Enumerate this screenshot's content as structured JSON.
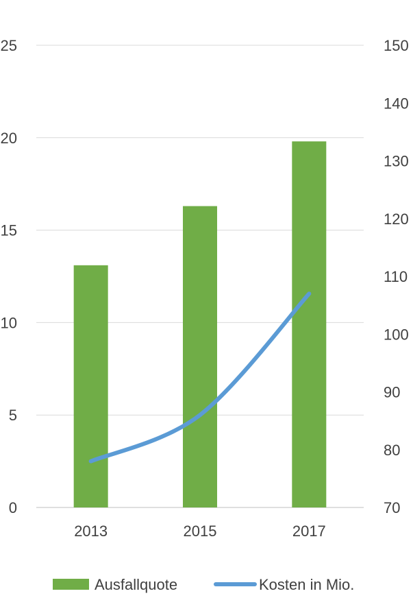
{
  "chart_data": {
    "type": "bar",
    "categories": [
      "2013",
      "2015",
      "2017"
    ],
    "series": [
      {
        "name": "Ausfallquote",
        "type": "bar",
        "axis": "left",
        "values": [
          13.1,
          16.3,
          19.8
        ],
        "color": "#70ad47"
      },
      {
        "name": "Kosten in Mio.",
        "type": "line",
        "axis": "right",
        "values": [
          78,
          86,
          107
        ],
        "color": "#5b9bd5"
      }
    ],
    "y_left": {
      "ylim": [
        0,
        25
      ],
      "ticks": [
        "0",
        "5",
        "10",
        "15",
        "20",
        "25"
      ]
    },
    "y_right": {
      "ylim": [
        70,
        150
      ],
      "ticks": [
        "70",
        "80",
        "90",
        "100",
        "110",
        "120",
        "130",
        "140",
        "150"
      ]
    },
    "grid": true,
    "legend_position": "bottom",
    "title": "",
    "xlabel": "",
    "ylabel": ""
  }
}
